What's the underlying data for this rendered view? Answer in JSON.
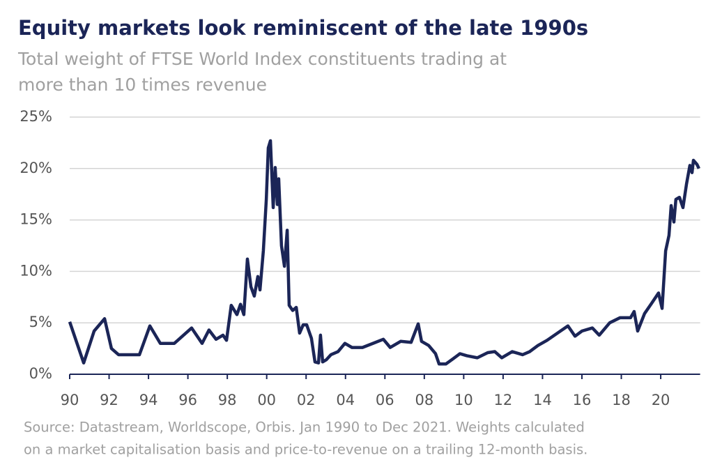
{
  "chart_data": {
    "type": "line",
    "title": "Equity markets look reminiscent of the late 1990s",
    "subtitle": [
      "Total weight of FTSE World Index constituents trading at",
      "more than 10 times revenue"
    ],
    "source": [
      "Source: Datastream, Worldscope, Orbis. Jan 1990 to Dec 2021. Weights calculated",
      "on a market capitalisation basis and price-to-revenue on a trailing 12-month basis."
    ],
    "x": [
      1990.0,
      1990.71,
      1991.24,
      1991.77,
      1992.12,
      1992.48,
      1993.54,
      1994.07,
      1994.6,
      1995.31,
      1996.19,
      1996.72,
      1997.07,
      1997.43,
      1997.78,
      1997.96,
      1998.2,
      1998.49,
      1998.67,
      1998.84,
      1999.02,
      1999.2,
      1999.37,
      1999.55,
      1999.66,
      1999.83,
      1999.98,
      2000.08,
      2000.19,
      2000.33,
      2000.43,
      2000.54,
      2000.61,
      2000.75,
      2000.9,
      2001.04,
      2001.14,
      2001.32,
      2001.5,
      2001.67,
      2001.85,
      2002.03,
      2002.27,
      2002.45,
      2002.63,
      2002.73,
      2002.84,
      2003.02,
      2003.26,
      2003.62,
      2003.97,
      2004.33,
      2004.86,
      2005.39,
      2005.92,
      2006.27,
      2006.8,
      2007.33,
      2007.69,
      2007.86,
      2008.22,
      2008.57,
      2008.75,
      2009.1,
      2009.46,
      2009.81,
      2010.16,
      2010.69,
      2011.22,
      2011.58,
      2011.93,
      2012.46,
      2012.99,
      2013.35,
      2013.77,
      2014.23,
      2014.76,
      2015.29,
      2015.65,
      2016.0,
      2016.53,
      2016.88,
      2017.41,
      2017.94,
      2018.47,
      2018.65,
      2018.83,
      2019.18,
      2019.54,
      2019.89,
      2020.07,
      2020.25,
      2020.42,
      2020.53,
      2020.67,
      2020.77,
      2020.95,
      2021.13,
      2021.31,
      2021.48,
      2021.59,
      2021.66,
      2021.84,
      2021.94
    ],
    "series": [
      {
        "color": "#1b2557",
        "values": [
          5.1,
          1.1,
          4.2,
          5.4,
          2.5,
          1.9,
          1.9,
          4.7,
          3.0,
          3.0,
          4.5,
          3.0,
          4.3,
          3.4,
          3.8,
          3.3,
          6.7,
          5.8,
          6.8,
          5.8,
          11.2,
          8.5,
          7.6,
          9.5,
          8.2,
          12.0,
          17.0,
          22.0,
          22.7,
          16.2,
          20.1,
          16.5,
          19.0,
          12.5,
          10.5,
          14.0,
          6.7,
          6.2,
          6.5,
          4.0,
          4.8,
          4.8,
          3.5,
          1.2,
          1.1,
          3.8,
          1.2,
          1.4,
          1.9,
          2.2,
          3.0,
          2.6,
          2.6,
          3.0,
          3.4,
          2.6,
          3.2,
          3.1,
          4.9,
          3.2,
          2.8,
          2.0,
          1.0,
          1.0,
          1.5,
          2.0,
          1.8,
          1.6,
          2.1,
          2.2,
          1.6,
          2.2,
          1.9,
          2.2,
          2.8,
          3.3,
          4.0,
          4.7,
          3.7,
          4.2,
          4.5,
          3.8,
          5.0,
          5.5,
          5.5,
          6.1,
          4.2,
          5.9,
          6.9,
          7.9,
          6.4,
          12.0,
          13.5,
          16.4,
          14.8,
          17.0,
          17.2,
          16.2,
          18.5,
          20.3,
          19.6,
          20.8,
          20.4,
          20.0
        ]
      }
    ],
    "xlim": [
      1990,
      2022
    ],
    "xticks": [
      {
        "value": 1990,
        "label": "90"
      },
      {
        "value": 1992,
        "label": "92"
      },
      {
        "value": 1994,
        "label": "94"
      },
      {
        "value": 1996,
        "label": "96"
      },
      {
        "value": 1998,
        "label": "98"
      },
      {
        "value": 2000,
        "label": "00"
      },
      {
        "value": 2002,
        "label": "02"
      },
      {
        "value": 2004,
        "label": "04"
      },
      {
        "value": 2006,
        "label": "06"
      },
      {
        "value": 2008,
        "label": "08"
      },
      {
        "value": 2010,
        "label": "10"
      },
      {
        "value": 2012,
        "label": "12"
      },
      {
        "value": 2014,
        "label": "14"
      },
      {
        "value": 2016,
        "label": "16"
      },
      {
        "value": 2018,
        "label": "18"
      },
      {
        "value": 2020,
        "label": "20"
      }
    ],
    "ylim": [
      0,
      25
    ],
    "yticks": [
      {
        "value": 0,
        "label": "0%"
      },
      {
        "value": 5,
        "label": "5%"
      },
      {
        "value": 10,
        "label": "10%"
      },
      {
        "value": 15,
        "label": "15%"
      },
      {
        "value": 20,
        "label": "20%"
      },
      {
        "value": 25,
        "label": "25%"
      }
    ],
    "grid": true
  }
}
